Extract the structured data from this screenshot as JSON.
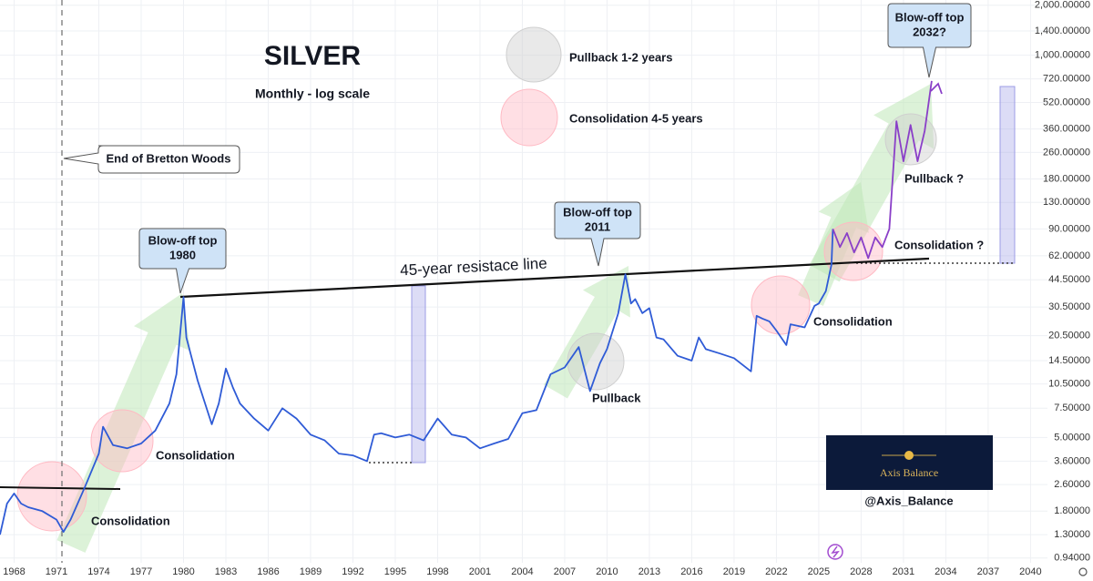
{
  "chart_data": {
    "type": "line",
    "title": "SILVER",
    "subtitle": "Monthly - log scale",
    "log_scale": true,
    "grid": true,
    "xlim": [
      1967,
      2041.2
    ],
    "ylim": [
      0.88,
      2150
    ],
    "xticks": [
      1968,
      1971,
      1974,
      1977,
      1980,
      1983,
      1986,
      1989,
      1992,
      1995,
      1998,
      2001,
      2004,
      2007,
      2010,
      2013,
      2016,
      2019,
      2022,
      2025,
      2028,
      2031,
      2034,
      2037,
      2040
    ],
    "yticks": [
      {
        "value": 2000,
        "label": "2,000.00000"
      },
      {
        "value": 1400,
        "label": "1,400.00000"
      },
      {
        "value": 1000,
        "label": "1,000.00000"
      },
      {
        "value": 720,
        "label": "720.00000"
      },
      {
        "value": 520,
        "label": "520.00000"
      },
      {
        "value": 360,
        "label": "360.00000"
      },
      {
        "value": 260,
        "label": "260.00000"
      },
      {
        "value": 180,
        "label": "180.00000"
      },
      {
        "value": 130,
        "label": "130.00000"
      },
      {
        "value": 90,
        "label": "90.00000"
      },
      {
        "value": 62,
        "label": "62.00000"
      },
      {
        "value": 44.5,
        "label": "44.50000"
      },
      {
        "value": 30.5,
        "label": "30.50000"
      },
      {
        "value": 20.5,
        "label": "20.50000"
      },
      {
        "value": 14.5,
        "label": "14.50000"
      },
      {
        "value": 10.5,
        "label": "10.50000"
      },
      {
        "value": 7.5,
        "label": "7.50000"
      },
      {
        "value": 5,
        "label": "5.00000"
      },
      {
        "value": 3.6,
        "label": "3.60000"
      },
      {
        "value": 2.6,
        "label": "2.60000"
      },
      {
        "value": 1.8,
        "label": "1.80000"
      },
      {
        "value": 1.3,
        "label": "1.30000"
      },
      {
        "value": 0.94,
        "label": "0.94000"
      }
    ],
    "series": [
      {
        "color": "#2f5bd6",
        "x": [
          1967.0,
          1967.5,
          1968.0,
          1968.5,
          1969.0,
          1970.0,
          1971.0,
          1971.5,
          1972.0,
          1973.0,
          1974.0,
          1974.3,
          1975.0,
          1976.0,
          1977.0,
          1978.0,
          1979.0,
          1979.5,
          1980.0,
          1980.2,
          1980.5,
          1981.0,
          1982.0,
          1982.5,
          1983.0,
          1983.5,
          1984.0,
          1985.0,
          1986.0,
          1987.0,
          1988.0,
          1989.0,
          1990.0,
          1991.0,
          1992.0,
          1993.0,
          1993.5,
          1994.0,
          1995.0,
          1996.0,
          1997.0,
          1998.0,
          1999.0,
          2000.0,
          2001.0,
          2002.0,
          2003.0,
          2004.0,
          2005.0,
          2006.0,
          2007.0,
          2008.0,
          2008.8,
          2009.5,
          2010.0,
          2010.8,
          2011.3,
          2011.7,
          2012.0,
          2012.5,
          2013.0,
          2013.5,
          2014.0,
          2015.0,
          2016.0,
          2016.5,
          2017.0,
          2018.0,
          2019.0,
          2020.2,
          2020.6,
          2021.0,
          2021.5,
          2022.0,
          2022.7,
          2023.0,
          2024.0,
          2024.7,
          2025.0,
          2025.5,
          2025.9,
          2026.0
        ],
        "values": [
          1.3,
          2.0,
          2.3,
          2.0,
          1.9,
          1.8,
          1.6,
          1.35,
          1.6,
          2.5,
          4.0,
          5.8,
          4.5,
          4.3,
          4.6,
          5.5,
          8,
          12,
          35,
          20,
          16,
          11,
          6,
          8,
          13,
          10,
          8,
          6.5,
          5.5,
          7.5,
          6.5,
          5.2,
          4.8,
          4.0,
          3.9,
          3.6,
          5.2,
          5.3,
          5.0,
          5.2,
          4.8,
          6.5,
          5.2,
          5.0,
          4.3,
          4.6,
          4.9,
          7.0,
          7.3,
          12.0,
          13.2,
          17.5,
          9.5,
          14,
          17,
          28,
          48,
          32,
          34,
          28,
          30,
          20,
          19.5,
          15.5,
          14.5,
          20,
          17,
          16,
          15,
          12.5,
          27,
          26,
          25,
          22,
          18,
          24,
          23,
          31,
          32,
          38,
          55,
          90
        ]
      },
      {
        "color": "#8a3fc8",
        "x": [
          2026.0,
          2026.5,
          2027.0,
          2027.5,
          2028.0,
          2028.5,
          2029.0,
          2029.5,
          2030.0,
          2030.5,
          2031.0,
          2031.5,
          2032.0,
          2032.5,
          2033.0
        ],
        "values": [
          90,
          70,
          85,
          65,
          80,
          60,
          80,
          70,
          90,
          400,
          230,
          380,
          230,
          350,
          700
        ]
      }
    ],
    "legend_notes": [
      "Pullback 1-2 years",
      "Consolidation 4-5 years"
    ],
    "note": "End of Bretton Woods",
    "callouts": [
      [
        "Blow-off top",
        "1980"
      ],
      [
        "Blow-off top",
        "2011"
      ],
      [
        "Blow-off top",
        "2032?"
      ]
    ],
    "resistance_label": "45-year resistace line",
    "labels": [
      "Consolidation",
      "Consolidation",
      "Consolidation",
      "Pullback",
      "Pullback ?",
      "Consolidation ?"
    ],
    "brand": "Axis Balance",
    "handle": "@Axis_Balance"
  }
}
